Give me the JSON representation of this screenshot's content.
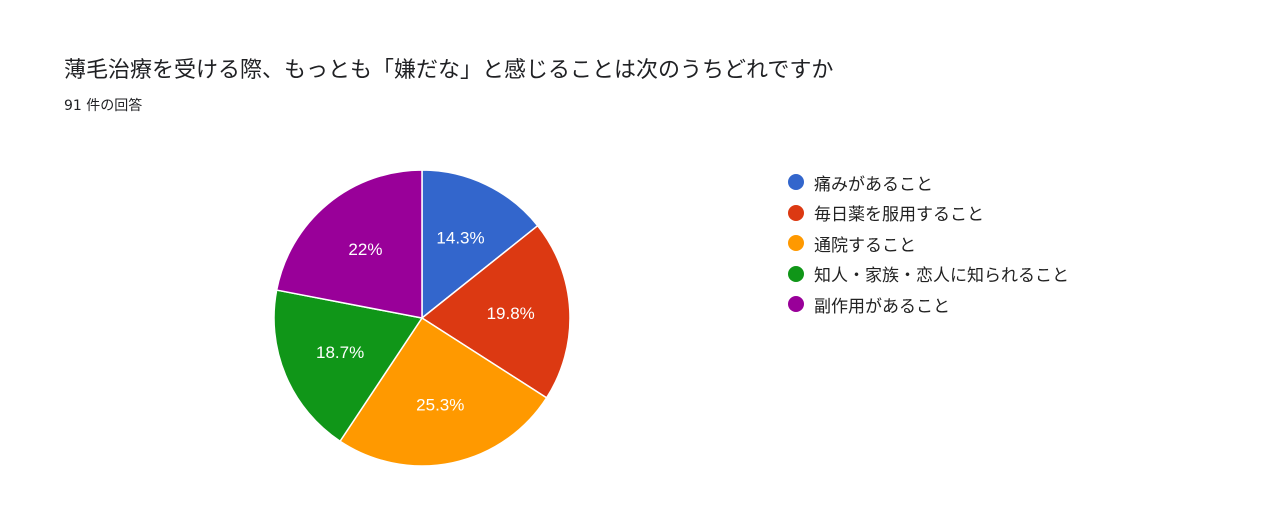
{
  "header": {
    "title": "薄毛治療を受ける際、もっとも「嫌だな」と感じることは次のうちどれですか",
    "response_count": "91 件の回答"
  },
  "chart_data": {
    "type": "pie",
    "legend_position": "right",
    "start_angle_deg": 90,
    "direction": "clockwise",
    "slices": [
      {
        "label": "痛みがあること",
        "value": 14.3,
        "display": "14.3%",
        "color": "#3366CC"
      },
      {
        "label": "毎日薬を服用すること",
        "value": 19.8,
        "display": "19.8%",
        "color": "#DC3912"
      },
      {
        "label": "通院すること",
        "value": 25.3,
        "display": "25.3%",
        "color": "#FF9900"
      },
      {
        "label": "知人・家族・恋人に知られること",
        "value": 18.7,
        "display": "18.7%",
        "color": "#109618"
      },
      {
        "label": "副作用があること",
        "value": 22.0,
        "display": "22%",
        "color": "#990099"
      }
    ]
  }
}
